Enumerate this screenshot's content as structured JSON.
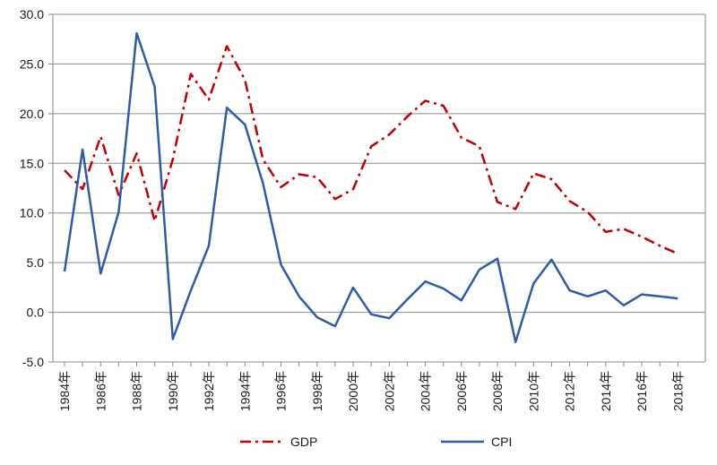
{
  "chart_data": {
    "type": "line",
    "title": "",
    "xlabel": "",
    "ylabel": "",
    "ylim": [
      -5,
      30
    ],
    "yticks": [
      -5,
      0,
      5,
      10,
      15,
      20,
      25,
      30
    ],
    "ytick_labels": [
      "-5.0",
      "0.0",
      "5.0",
      "10.0",
      "15.0",
      "20.0",
      "25.0",
      "30.0"
    ],
    "grid": "horizontal",
    "legend_position": "bottom",
    "x": [
      "1984年",
      "1985年",
      "1986年",
      "1987年",
      "1988年",
      "1989年",
      "1990年",
      "1991年",
      "1992年",
      "1993年",
      "1994年",
      "1995年",
      "1996年",
      "1997年",
      "1998年",
      "1999年",
      "2000年",
      "2001年",
      "2002年",
      "2003年",
      "2004年",
      "2005年",
      "2006年",
      "2007年",
      "2008年",
      "2009年",
      "2010年",
      "2011年",
      "2012年",
      "2013年",
      "2014年",
      "2015年",
      "2016年",
      "2017年",
      "2018年"
    ],
    "xtick_labels": [
      "1984年",
      "1986年",
      "1988年",
      "1990年",
      "1992年",
      "1994年",
      "1996年",
      "1998年",
      "2000年",
      "2002年",
      "2004年",
      "2006年",
      "2008年",
      "2010年",
      "2012年",
      "2014年",
      "2016年",
      "2018年"
    ],
    "series": [
      {
        "name": "GDP",
        "color": "#c00000",
        "style": "dash-dot",
        "values": [
          14.3,
          12.4,
          17.7,
          11.8,
          16.0,
          9.2,
          15.4,
          24.0,
          21.4,
          26.8,
          23.4,
          15.4,
          12.6,
          13.9,
          13.6,
          11.4,
          12.4,
          16.7,
          17.9,
          19.7,
          21.3,
          20.8,
          17.6,
          16.7,
          11.1,
          10.4,
          14.0,
          13.4,
          11.2,
          10.1,
          8.1,
          8.4,
          7.6,
          6.7,
          5.9
        ]
      },
      {
        "name": "CPI",
        "color": "#2e5ba8",
        "style": "solid",
        "values": [
          4.1,
          16.4,
          3.9,
          10.1,
          28.1,
          22.7,
          -2.7,
          2.2,
          6.7,
          20.6,
          18.9,
          13.0,
          4.8,
          1.6,
          -0.5,
          -1.4,
          2.5,
          -0.2,
          -0.6,
          1.3,
          3.1,
          2.4,
          1.2,
          4.3,
          5.4,
          -3.0,
          2.9,
          5.3,
          2.2,
          1.6,
          2.2,
          0.7,
          1.8,
          1.6,
          1.4
        ]
      }
    ]
  }
}
